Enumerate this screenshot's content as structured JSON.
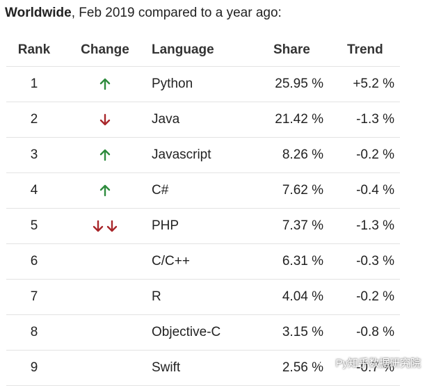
{
  "title": {
    "bold": "Worldwide",
    "rest": ", Feb 2019 compared to a year ago:"
  },
  "headers": {
    "rank": "Rank",
    "change": "Change",
    "language": "Language",
    "share": "Share",
    "trend": "Trend"
  },
  "rows": [
    {
      "rank": "1",
      "change": "up",
      "language": "Python",
      "share": "25.95 %",
      "trend": "+5.2 %"
    },
    {
      "rank": "2",
      "change": "down",
      "language": "Java",
      "share": "21.42 %",
      "trend": "-1.3 %"
    },
    {
      "rank": "3",
      "change": "up",
      "language": "Javascript",
      "share": "8.26 %",
      "trend": "-0.2 %"
    },
    {
      "rank": "4",
      "change": "up",
      "language": "C#",
      "share": "7.62 %",
      "trend": "-0.4 %"
    },
    {
      "rank": "5",
      "change": "down-down",
      "language": "PHP",
      "share": "7.37 %",
      "trend": "-1.3 %"
    },
    {
      "rank": "6",
      "change": "",
      "language": "C/C++",
      "share": "6.31 %",
      "trend": "-0.3 %"
    },
    {
      "rank": "7",
      "change": "",
      "language": "R",
      "share": "4.04 %",
      "trend": "-0.2 %"
    },
    {
      "rank": "8",
      "change": "",
      "language": "Objective-C",
      "share": "3.15 %",
      "trend": "-0.8 %"
    },
    {
      "rank": "9",
      "change": "",
      "language": "Swift",
      "share": "2.56 %",
      "trend": "-0.7 %"
    }
  ],
  "watermark": "Py知乎数据研究院",
  "colors": {
    "up": "#2e8b3d",
    "down": "#a8262a",
    "divider": "#e3e3e3"
  }
}
